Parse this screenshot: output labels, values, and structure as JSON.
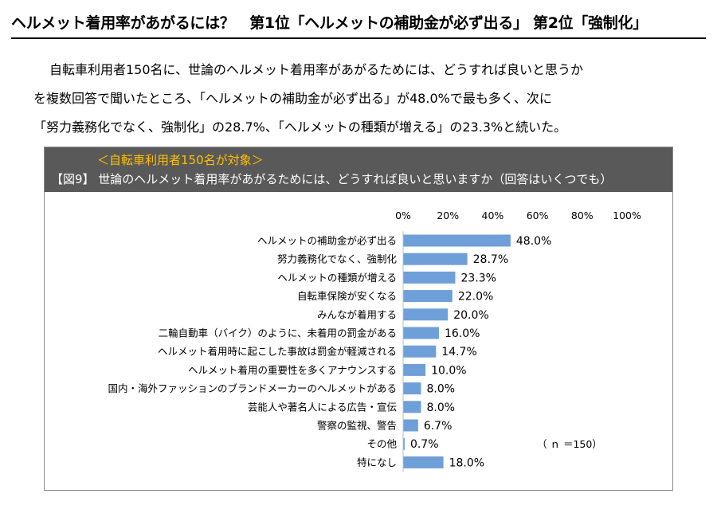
{
  "headline": "ヘルメット着用率があがるには？　第1位「ヘルメットの補助金が必ず出る」 第2位「強制化」",
  "intro": {
    "line1": "自転車利用者150名に、世論のヘルメット着用率があがるためには、どうすれば良いと思うか",
    "line2": "を複数回答で聞いたところ、「ヘルメットの補助金が必ず出る」が48.0%で最も多く、次に",
    "line3": "「努力義務化でなく、強制化」の28.7%、「ヘルメットの種類が増える」の23.3%と続いた。"
  },
  "figure": {
    "subtitle": "＜自転車利用者150名が対象＞",
    "title": "【図9】 世論のヘルメット着用率があがるためには、どうすれば良いと思いますか（回答はいくつでも）",
    "sample_note": "（ ｎ ＝150）"
  },
  "chart_data": {
    "type": "bar",
    "orientation": "horizontal",
    "title": "【図9】 世論のヘルメット着用率があがるためには、どうすれば良いと思いますか（回答はいくつでも）",
    "subtitle": "＜自転車利用者150名が対象＞",
    "categories": [
      "ヘルメットの補助金が必ず出る",
      "努力義務化でなく、強制化",
      "ヘルメットの種類が増える",
      "自転車保険が安くなる",
      "みんなが着用する",
      "二輪自動車（バイク）のように、未着用の罰金がある",
      "ヘルメット着用時に起こした事故は罰金が軽減される",
      "ヘルメット着用の重要性を多くアナウンスする",
      "国内・海外ファッションのブランドメーカーのヘルメットがある",
      "芸能人や著名人による広告・宣伝",
      "警察の監視、警告",
      "その他",
      "特になし"
    ],
    "values": [
      48.0,
      28.7,
      23.3,
      22.0,
      20.0,
      16.0,
      14.7,
      10.0,
      8.0,
      8.0,
      6.7,
      0.7,
      18.0
    ],
    "value_labels": [
      "48.0%",
      "28.7%",
      "23.3%",
      "22.0%",
      "20.0%",
      "16.0%",
      "14.7%",
      "10.0%",
      "8.0%",
      "8.0%",
      "6.7%",
      "0.7%",
      "18.0%"
    ],
    "xlim": [
      0,
      100
    ],
    "ticks": [
      0,
      20,
      40,
      60,
      80,
      100
    ],
    "tick_labels": [
      "0%",
      "20%",
      "40%",
      "60%",
      "80%",
      "100%"
    ],
    "grid": false,
    "bar_color": "#6f9fd8"
  },
  "colors": {
    "header_bg": "#595959",
    "subtitle": "#ffc000",
    "header_text": "#ffffff",
    "bar": "#6f9fd8"
  }
}
